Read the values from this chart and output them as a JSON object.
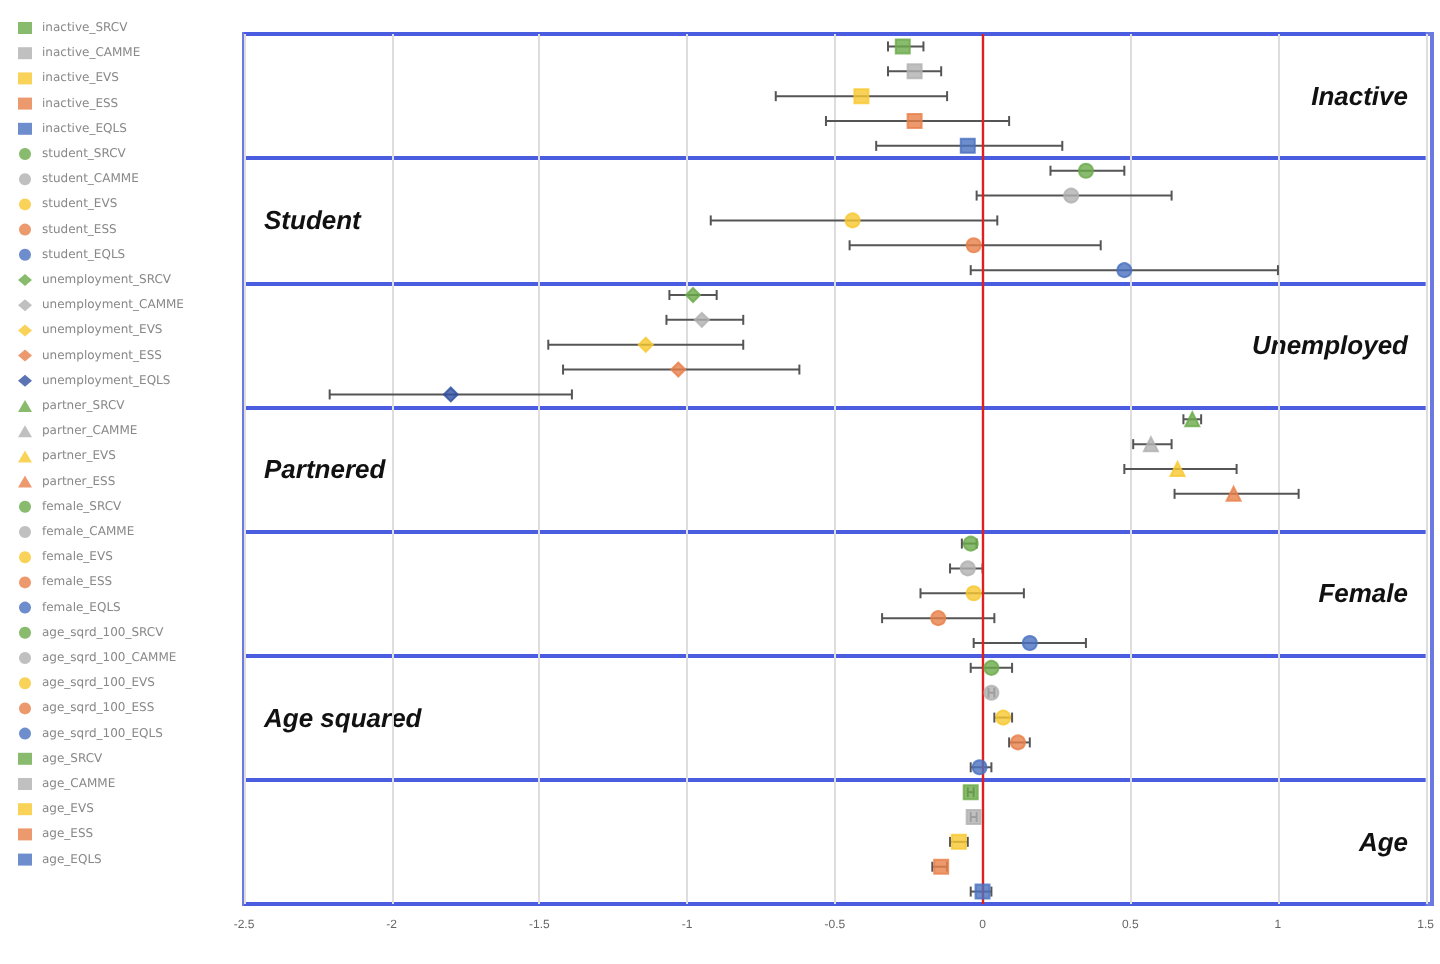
{
  "chart_data": {
    "type": "scatter",
    "orientation": "horizontal",
    "categories": [
      "Inactive",
      "Student",
      "Unemployed",
      "Partnered",
      "Female",
      "Age squared",
      "Age"
    ],
    "xlim": [
      -2.5,
      1.5
    ],
    "xticks": [
      -2.5,
      -2,
      -1.5,
      -1,
      -0.5,
      0,
      0.5,
      1,
      1.5
    ],
    "grid": true,
    "legend": "left",
    "ref_lines": [
      {
        "axis": "x",
        "value": 0,
        "color": "#e02020"
      }
    ],
    "series": [
      {
        "name": "inactive_SRCV",
        "color": "#6aaa4a",
        "marker": "square",
        "values": [
          -0.27,
          null,
          null,
          null,
          null,
          null,
          null
        ],
        "errors": [
          [
            -0.32,
            -0.2
          ],
          null,
          null,
          null,
          null,
          null,
          null
        ]
      },
      {
        "name": "inactive_CAMME",
        "color": "#b0b0b0",
        "marker": "square",
        "values": [
          -0.23,
          null,
          null,
          null,
          null,
          null,
          null
        ],
        "errors": [
          [
            -0.32,
            -0.14
          ],
          null,
          null,
          null,
          null,
          null,
          null
        ]
      },
      {
        "name": "inactive_EVS",
        "color": "#f8c830",
        "marker": "square",
        "values": [
          -0.41,
          null,
          null,
          null,
          null,
          null,
          null
        ],
        "errors": [
          [
            -0.7,
            -0.12
          ],
          null,
          null,
          null,
          null,
          null,
          null
        ]
      },
      {
        "name": "inactive_ESS",
        "color": "#e8804a",
        "marker": "square",
        "values": [
          -0.23,
          null,
          null,
          null,
          null,
          null,
          null
        ],
        "errors": [
          [
            -0.53,
            0.09
          ],
          null,
          null,
          null,
          null,
          null,
          null
        ]
      },
      {
        "name": "inactive_EQLS",
        "color": "#4a70c0",
        "marker": "square",
        "values": [
          -0.05,
          null,
          null,
          null,
          null,
          null,
          null
        ],
        "errors": [
          [
            -0.36,
            0.27
          ],
          null,
          null,
          null,
          null,
          null,
          null
        ]
      },
      {
        "name": "student_SRCV",
        "color": "#6aaa4a",
        "marker": "circle",
        "values": [
          null,
          0.35,
          null,
          null,
          null,
          null,
          null
        ],
        "errors": [
          null,
          [
            0.23,
            0.48
          ],
          null,
          null,
          null,
          null,
          null
        ]
      },
      {
        "name": "student_CAMME",
        "color": "#b0b0b0",
        "marker": "circle",
        "values": [
          null,
          0.3,
          null,
          null,
          null,
          null,
          null
        ],
        "errors": [
          null,
          [
            -0.02,
            0.64
          ],
          null,
          null,
          null,
          null,
          null
        ]
      },
      {
        "name": "student_EVS",
        "color": "#f8c830",
        "marker": "circle",
        "values": [
          null,
          -0.44,
          null,
          null,
          null,
          null,
          null
        ],
        "errors": [
          null,
          [
            -0.92,
            0.05
          ],
          null,
          null,
          null,
          null,
          null
        ]
      },
      {
        "name": "student_ESS",
        "color": "#e8804a",
        "marker": "circle",
        "values": [
          null,
          -0.03,
          null,
          null,
          null,
          null,
          null
        ],
        "errors": [
          null,
          [
            -0.45,
            0.4
          ],
          null,
          null,
          null,
          null,
          null
        ]
      },
      {
        "name": "student_EQLS",
        "color": "#4a70c0",
        "marker": "circle",
        "values": [
          null,
          0.48,
          null,
          null,
          null,
          null,
          null
        ],
        "errors": [
          null,
          [
            -0.04,
            1.0
          ],
          null,
          null,
          null,
          null,
          null
        ]
      },
      {
        "name": "unemployment_SRCV",
        "color": "#6aaa4a",
        "marker": "diamond",
        "values": [
          null,
          null,
          -0.98,
          null,
          null,
          null,
          null
        ],
        "errors": [
          null,
          null,
          [
            -1.06,
            -0.9
          ],
          null,
          null,
          null,
          null
        ]
      },
      {
        "name": "unemployment_CAMME",
        "color": "#b0b0b0",
        "marker": "diamond",
        "values": [
          null,
          null,
          -0.95,
          null,
          null,
          null,
          null
        ],
        "errors": [
          null,
          null,
          [
            -1.07,
            -0.81
          ],
          null,
          null,
          null,
          null
        ]
      },
      {
        "name": "unemployment_EVS",
        "color": "#f8c830",
        "marker": "diamond",
        "values": [
          null,
          null,
          -1.14,
          null,
          null,
          null,
          null
        ],
        "errors": [
          null,
          null,
          [
            -1.47,
            -0.81
          ],
          null,
          null,
          null,
          null
        ]
      },
      {
        "name": "unemployment_ESS",
        "color": "#e8804a",
        "marker": "diamond",
        "values": [
          null,
          null,
          -1.03,
          null,
          null,
          null,
          null
        ],
        "errors": [
          null,
          null,
          [
            -1.42,
            -0.62
          ],
          null,
          null,
          null,
          null
        ]
      },
      {
        "name": "unemployment_EQLS",
        "color": "#3050a0",
        "marker": "diamond",
        "values": [
          null,
          null,
          -1.8,
          null,
          null,
          null,
          null
        ],
        "errors": [
          null,
          null,
          [
            -2.21,
            -1.39
          ],
          null,
          null,
          null,
          null
        ]
      },
      {
        "name": "partner_SRCV",
        "color": "#6aaa4a",
        "marker": "triangle",
        "values": [
          null,
          null,
          null,
          0.71,
          null,
          null,
          null
        ],
        "errors": [
          null,
          null,
          null,
          [
            0.68,
            0.74
          ],
          null,
          null,
          null
        ]
      },
      {
        "name": "partner_CAMME",
        "color": "#b0b0b0",
        "marker": "triangle",
        "values": [
          null,
          null,
          null,
          0.57,
          null,
          null,
          null
        ],
        "errors": [
          null,
          null,
          null,
          [
            0.51,
            0.64
          ],
          null,
          null,
          null
        ]
      },
      {
        "name": "partner_EVS",
        "color": "#f8c830",
        "marker": "triangle",
        "values": [
          null,
          null,
          null,
          0.66,
          null,
          null,
          null
        ],
        "errors": [
          null,
          null,
          null,
          [
            0.48,
            0.86
          ],
          null,
          null,
          null
        ]
      },
      {
        "name": "partner_ESS",
        "color": "#e8804a",
        "marker": "triangle",
        "values": [
          null,
          null,
          null,
          0.85,
          null,
          null,
          null
        ],
        "errors": [
          null,
          null,
          null,
          [
            0.65,
            1.07
          ],
          null,
          null,
          null
        ]
      },
      {
        "name": "female_SRCV",
        "color": "#6aaa4a",
        "marker": "circle",
        "values": [
          null,
          null,
          null,
          null,
          -0.04,
          null,
          null
        ],
        "errors": [
          null,
          null,
          null,
          null,
          [
            -0.07,
            -0.02
          ],
          null,
          null
        ]
      },
      {
        "name": "female_CAMME",
        "color": "#b0b0b0",
        "marker": "circle",
        "values": [
          null,
          null,
          null,
          null,
          -0.05,
          null,
          null
        ],
        "errors": [
          null,
          null,
          null,
          null,
          [
            -0.11,
            0
          ],
          null,
          null
        ]
      },
      {
        "name": "female_EVS",
        "color": "#f8c830",
        "marker": "circle",
        "values": [
          null,
          null,
          null,
          null,
          -0.03,
          null,
          null
        ],
        "errors": [
          null,
          null,
          null,
          null,
          [
            -0.21,
            0.14
          ],
          null,
          null
        ]
      },
      {
        "name": "female_ESS",
        "color": "#e8804a",
        "marker": "circle",
        "values": [
          null,
          null,
          null,
          null,
          -0.15,
          null,
          null
        ],
        "errors": [
          null,
          null,
          null,
          null,
          [
            -0.34,
            0.04
          ],
          null,
          null
        ]
      },
      {
        "name": "female_EQLS",
        "color": "#4a70c0",
        "marker": "circle",
        "values": [
          null,
          null,
          null,
          null,
          0.16,
          null,
          null
        ],
        "errors": [
          null,
          null,
          null,
          null,
          [
            -0.03,
            0.35
          ],
          null,
          null
        ]
      },
      {
        "name": "age_sqrd_100_SRCV",
        "color": "#6aaa4a",
        "marker": "circle",
        "values": [
          null,
          null,
          null,
          null,
          null,
          0.03,
          null
        ],
        "errors": [
          null,
          null,
          null,
          null,
          null,
          [
            -0.04,
            0.1
          ],
          null
        ]
      },
      {
        "name": "age_sqrd_100_CAMME",
        "color": "#b0b0b0",
        "marker": "circle",
        "values": [
          null,
          null,
          null,
          null,
          null,
          0.03,
          null
        ],
        "errors": [
          null,
          null,
          null,
          null,
          null,
          [
            0.02,
            0.04
          ],
          null
        ]
      },
      {
        "name": "age_sqrd_100_EVS",
        "color": "#f8c830",
        "marker": "circle",
        "values": [
          null,
          null,
          null,
          null,
          null,
          0.07,
          null
        ],
        "errors": [
          null,
          null,
          null,
          null,
          null,
          [
            0.04,
            0.1
          ],
          null
        ]
      },
      {
        "name": "age_sqrd_100_ESS",
        "color": "#e8804a",
        "marker": "circle",
        "values": [
          null,
          null,
          null,
          null,
          null,
          0.12,
          null
        ],
        "errors": [
          null,
          null,
          null,
          null,
          null,
          [
            0.09,
            0.16
          ],
          null
        ]
      },
      {
        "name": "age_sqrd_100_EQLS",
        "color": "#4a70c0",
        "marker": "circle",
        "values": [
          null,
          null,
          null,
          null,
          null,
          -0.01,
          null
        ],
        "errors": [
          null,
          null,
          null,
          null,
          null,
          [
            -0.04,
            0.03
          ],
          null
        ]
      },
      {
        "name": "age_SRCV",
        "color": "#6aaa4a",
        "marker": "square",
        "values": [
          null,
          null,
          null,
          null,
          null,
          null,
          -0.04
        ],
        "errors": [
          null,
          null,
          null,
          null,
          null,
          null,
          [
            -0.05,
            -0.03
          ]
        ]
      },
      {
        "name": "age_CAMME",
        "color": "#b0b0b0",
        "marker": "square",
        "values": [
          null,
          null,
          null,
          null,
          null,
          null,
          -0.03
        ],
        "errors": [
          null,
          null,
          null,
          null,
          null,
          null,
          [
            -0.04,
            -0.02
          ]
        ]
      },
      {
        "name": "age_EVS",
        "color": "#f8c830",
        "marker": "square",
        "values": [
          null,
          null,
          null,
          null,
          null,
          null,
          -0.08
        ],
        "errors": [
          null,
          null,
          null,
          null,
          null,
          null,
          [
            -0.11,
            -0.05
          ]
        ]
      },
      {
        "name": "age_ESS",
        "color": "#e8804a",
        "marker": "square",
        "values": [
          null,
          null,
          null,
          null,
          null,
          null,
          -0.14
        ],
        "errors": [
          null,
          null,
          null,
          null,
          null,
          null,
          [
            -0.17,
            -0.12
          ]
        ]
      },
      {
        "name": "age_EQLS",
        "color": "#4a70c0",
        "marker": "square",
        "values": [
          null,
          null,
          null,
          null,
          null,
          null,
          0
        ],
        "errors": [
          null,
          null,
          null,
          null,
          null,
          null,
          [
            -0.04,
            0.03
          ]
        ]
      }
    ]
  }
}
